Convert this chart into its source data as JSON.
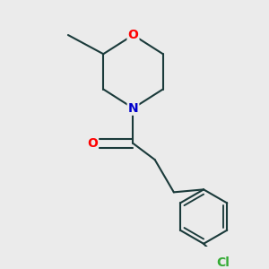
{
  "background_color": "#ebebeb",
  "line_color": "#1a3a3a",
  "bond_width": 1.5,
  "atom_colors": {
    "O": "#ff0000",
    "N": "#0000cc",
    "Cl": "#33aa33",
    "C": "#1a3a3a"
  },
  "font_size": 10,
  "fig_size": [
    3.0,
    3.0
  ],
  "dpi": 100
}
